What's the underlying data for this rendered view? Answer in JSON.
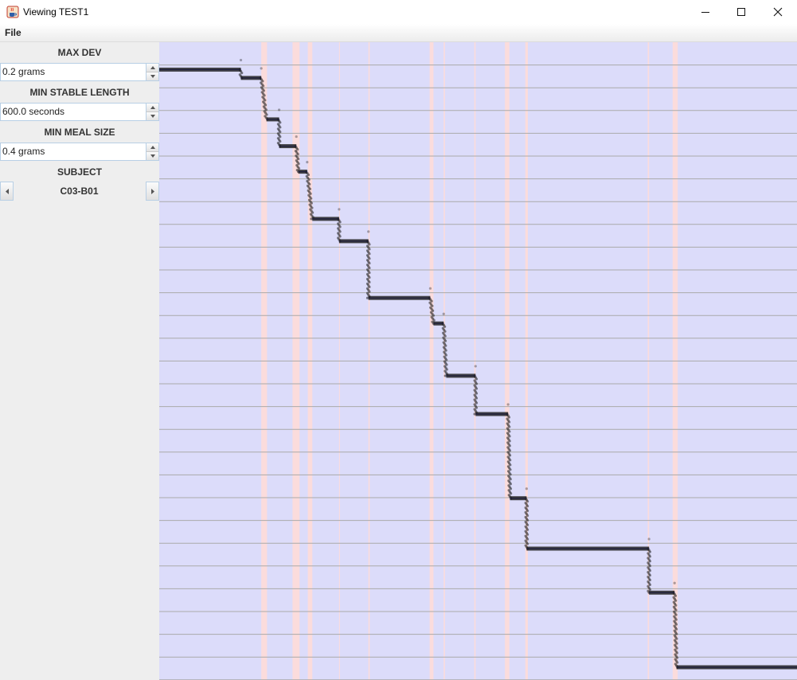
{
  "window": {
    "title": "Viewing TEST1",
    "icon": "java-coffee-icon"
  },
  "menu": {
    "file": "File"
  },
  "controls": {
    "max_dev": {
      "label": "MAX DEV",
      "value": "0.2 grams"
    },
    "min_stable_length": {
      "label": "MIN STABLE LENGTH",
      "value": "600.0 seconds"
    },
    "min_meal_size": {
      "label": "MIN MEAL SIZE",
      "value": "0.4 grams"
    },
    "subject": {
      "label": "SUBJECT",
      "value": "C03-B01"
    }
  },
  "colors": {
    "plot_background": "#dcdcfa",
    "meal_band": "#fbdcdc",
    "gridline": "#aaaaaa",
    "stable_line": "#2b2bb8",
    "raw_points": "#1a1a1a"
  },
  "chart_data": {
    "type": "line",
    "title": "",
    "xlabel": "",
    "ylabel": "",
    "grid": "horizontal",
    "x_range": [
      0,
      100
    ],
    "y_range": [
      0,
      100
    ],
    "meal_bands": [
      [
        16.0,
        16.9
      ],
      [
        20.9,
        22.0
      ],
      [
        23.3,
        24.0
      ],
      [
        28.2,
        28.3
      ],
      [
        32.8,
        33.0
      ],
      [
        42.4,
        43.0
      ],
      [
        44.6,
        44.8
      ],
      [
        49.4,
        49.6
      ],
      [
        54.2,
        54.9
      ],
      [
        57.4,
        57.8
      ],
      [
        76.6,
        76.8
      ],
      [
        80.5,
        81.3
      ]
    ],
    "stable_segments": [
      {
        "x_start": 0.0,
        "x_end": 12.8,
        "y": 95.7
      },
      {
        "x_start": 12.8,
        "x_end": 16.0,
        "y": 94.4
      },
      {
        "x_start": 16.8,
        "x_end": 18.8,
        "y": 87.9
      },
      {
        "x_start": 18.8,
        "x_end": 21.5,
        "y": 83.7
      },
      {
        "x_start": 21.8,
        "x_end": 23.2,
        "y": 79.7
      },
      {
        "x_start": 24.0,
        "x_end": 28.2,
        "y": 72.3
      },
      {
        "x_start": 28.2,
        "x_end": 32.8,
        "y": 68.8
      },
      {
        "x_start": 32.8,
        "x_end": 42.5,
        "y": 59.9
      },
      {
        "x_start": 43.0,
        "x_end": 44.6,
        "y": 55.9
      },
      {
        "x_start": 45.0,
        "x_end": 49.6,
        "y": 47.7
      },
      {
        "x_start": 49.6,
        "x_end": 54.7,
        "y": 41.7
      },
      {
        "x_start": 55.0,
        "x_end": 57.6,
        "y": 28.5
      },
      {
        "x_start": 57.6,
        "x_end": 76.8,
        "y": 20.6
      },
      {
        "x_start": 76.8,
        "x_end": 80.8,
        "y": 13.7
      },
      {
        "x_start": 81.1,
        "x_end": 100.0,
        "y": 2.0
      }
    ]
  }
}
